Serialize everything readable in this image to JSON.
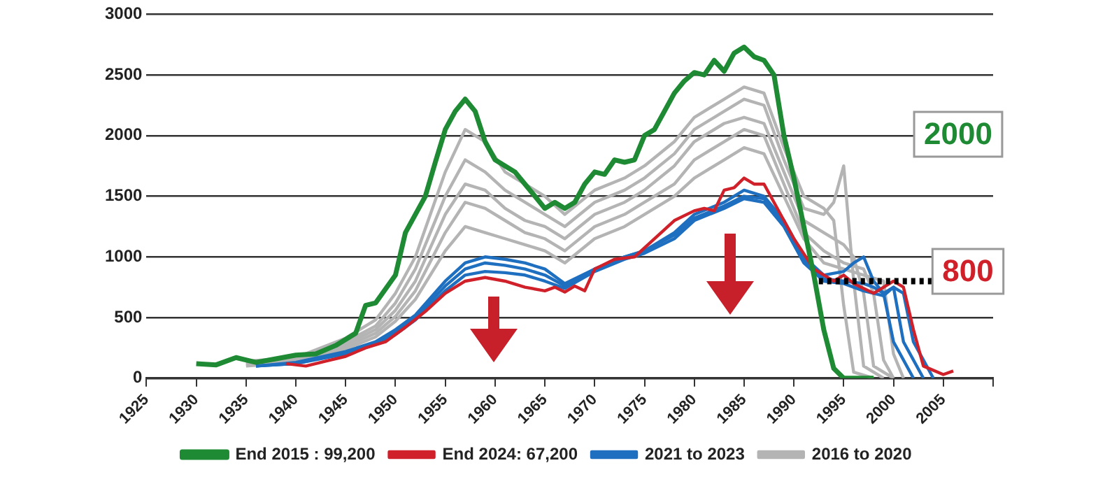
{
  "chart_data": {
    "type": "line",
    "xlim": [
      1925,
      2010
    ],
    "xticks": [
      1925,
      1930,
      1935,
      1940,
      1945,
      1950,
      1955,
      1960,
      1965,
      1970,
      1975,
      1980,
      1985,
      1990,
      1995,
      2000,
      2005,
      {
        "value": 2010,
        "label": null
      }
    ],
    "ylim": [
      0,
      3000
    ],
    "yticks": [
      0,
      500,
      1000,
      1500,
      2000,
      2500,
      3000
    ],
    "grid": "y",
    "legend": "bottom",
    "marker": "none",
    "line_style": "solid",
    "annotations": [
      "2000",
      "800"
    ],
    "series": [
      {
        "name": "End 2015 : 99,200",
        "color": "#1e8b34",
        "x": [
          1930,
          1932,
          1934,
          1936,
          1938,
          1940,
          1942,
          1944,
          1946,
          1947,
          1948,
          1950,
          1951,
          1952,
          1953,
          1954,
          1955,
          1956,
          1957,
          1958,
          1959,
          1960,
          1961,
          1962,
          1963,
          1964,
          1965,
          1966,
          1967,
          1968,
          1969,
          1970,
          1971,
          1972,
          1973,
          1974,
          1975,
          1976,
          1977,
          1978,
          1979,
          1980,
          1981,
          1982,
          1983,
          1984,
          1985,
          1986,
          1987,
          1988,
          1989,
          1990,
          1991,
          1992,
          1993,
          1994,
          1995,
          1998
        ],
        "values": [
          120,
          110,
          170,
          130,
          160,
          190,
          200,
          270,
          370,
          600,
          620,
          850,
          1200,
          1350,
          1500,
          1780,
          2050,
          2200,
          2300,
          2200,
          1950,
          1800,
          1750,
          1700,
          1600,
          1500,
          1400,
          1450,
          1400,
          1450,
          1600,
          1700,
          1680,
          1800,
          1780,
          1800,
          2000,
          2050,
          2200,
          2350,
          2450,
          2520,
          2500,
          2620,
          2530,
          2680,
          2730,
          2650,
          2620,
          2500,
          2000,
          1650,
          1250,
          850,
          400,
          80,
          0,
          0
        ]
      },
      {
        "name": "2016 to 2020",
        "color": "#b4b4b4",
        "x": [
          1935,
          1940,
          1945,
          1948,
          1950,
          1952,
          1955,
          1957,
          1959,
          1961,
          1963,
          1965,
          1967,
          1970,
          1973,
          1975,
          1978,
          1980,
          1983,
          1985,
          1987,
          1989,
          1991,
          1993,
          1994,
          1995,
          1996,
          1998
        ],
        "values": [
          140,
          170,
          330,
          480,
          700,
          1000,
          1700,
          2050,
          1950,
          1700,
          1600,
          1500,
          1350,
          1550,
          1650,
          1750,
          1950,
          2150,
          2300,
          2400,
          2350,
          1900,
          1500,
          1400,
          1300,
          600,
          50,
          0
        ]
      },
      {
        "color": "#b4b4b4",
        "x": [
          1935,
          1940,
          1945,
          1948,
          1950,
          1952,
          1955,
          1957,
          1959,
          1961,
          1963,
          1965,
          1967,
          1970,
          1973,
          1975,
          1978,
          1980,
          1983,
          1985,
          1987,
          1989,
          1991,
          1993,
          1994,
          1995,
          1996,
          1997,
          1999
        ],
        "values": [
          130,
          160,
          300,
          430,
          620,
          900,
          1500,
          1800,
          1700,
          1550,
          1450,
          1350,
          1250,
          1450,
          1550,
          1650,
          1850,
          2050,
          2200,
          2300,
          2250,
          1800,
          1400,
          1350,
          1450,
          1750,
          800,
          100,
          0
        ]
      },
      {
        "color": "#b4b4b4",
        "x": [
          1935,
          1940,
          1945,
          1948,
          1950,
          1952,
          1955,
          1957,
          1959,
          1961,
          1963,
          1965,
          1967,
          1970,
          1973,
          1975,
          1978,
          1980,
          1983,
          1985,
          1987,
          1989,
          1991,
          1993,
          1995,
          1996,
          1997,
          1998,
          2000
        ],
        "values": [
          120,
          150,
          280,
          400,
          560,
          800,
          1350,
          1600,
          1550,
          1400,
          1300,
          1250,
          1150,
          1350,
          1450,
          1550,
          1750,
          1950,
          2100,
          2150,
          2100,
          1700,
          1300,
          1200,
          1100,
          1000,
          700,
          100,
          0
        ]
      },
      {
        "color": "#b4b4b4",
        "x": [
          1935,
          1940,
          1945,
          1948,
          1950,
          1952,
          1955,
          1957,
          1959,
          1961,
          1963,
          1965,
          1967,
          1970,
          1973,
          1975,
          1978,
          1980,
          1983,
          1985,
          1987,
          1989,
          1991,
          1993,
          1995,
          1997,
          1998,
          1999,
          2000
        ],
        "values": [
          110,
          140,
          260,
          370,
          510,
          720,
          1200,
          1450,
          1400,
          1300,
          1200,
          1150,
          1050,
          1250,
          1350,
          1450,
          1600,
          1800,
          1950,
          2050,
          2000,
          1600,
          1200,
          1050,
          950,
          900,
          700,
          150,
          0
        ]
      },
      {
        "color": "#b4b4b4",
        "x": [
          1935,
          1940,
          1945,
          1948,
          1950,
          1952,
          1955,
          1957,
          1959,
          1961,
          1963,
          1965,
          1967,
          1970,
          1973,
          1975,
          1978,
          1980,
          1983,
          1985,
          1987,
          1989,
          1991,
          1993,
          1995,
          1997,
          1999,
          2000,
          2001
        ],
        "values": [
          100,
          130,
          240,
          340,
          470,
          650,
          1050,
          1250,
          1200,
          1150,
          1100,
          1050,
          950,
          1150,
          1250,
          1350,
          1500,
          1650,
          1800,
          1900,
          1850,
          1500,
          1150,
          950,
          900,
          850,
          800,
          200,
          0
        ]
      },
      {
        "name": "2021 to 2023",
        "color": "#1f6fc0",
        "x": [
          1936,
          1940,
          1945,
          1948,
          1950,
          1952,
          1955,
          1957,
          1959,
          1961,
          1963,
          1965,
          1967,
          1970,
          1973,
          1975,
          1978,
          1980,
          1983,
          1985,
          1987,
          1989,
          1991,
          1993,
          1995,
          1996,
          1997,
          1998,
          1999,
          2000,
          2002
        ],
        "values": [
          100,
          130,
          220,
          300,
          400,
          520,
          800,
          950,
          1000,
          980,
          950,
          900,
          780,
          900,
          1000,
          1050,
          1200,
          1350,
          1450,
          1550,
          1500,
          1300,
          1000,
          850,
          880,
          950,
          1000,
          800,
          700,
          300,
          0
        ]
      },
      {
        "color": "#1f6fc0",
        "x": [
          1936,
          1940,
          1945,
          1948,
          1950,
          1952,
          1955,
          1957,
          1959,
          1961,
          1963,
          1965,
          1967,
          1970,
          1973,
          1975,
          1978,
          1980,
          1983,
          1985,
          1987,
          1989,
          1991,
          1993,
          1995,
          1997,
          1998,
          1999,
          2000,
          2001,
          2003
        ],
        "values": [
          100,
          120,
          210,
          290,
          380,
          500,
          760,
          900,
          950,
          930,
          900,
          850,
          760,
          900,
          1000,
          1050,
          1180,
          1320,
          1420,
          1500,
          1480,
          1280,
          980,
          820,
          800,
          780,
          750,
          700,
          750,
          300,
          0
        ]
      },
      {
        "color": "#1f6fc0",
        "x": [
          1936,
          1940,
          1945,
          1948,
          1950,
          1952,
          1955,
          1957,
          1959,
          1961,
          1963,
          1965,
          1967,
          1970,
          1973,
          1975,
          1978,
          1980,
          1983,
          1985,
          1987,
          1989,
          1991,
          1993,
          1995,
          1997,
          1999,
          2000,
          2001,
          2002,
          2004
        ],
        "values": [
          100,
          120,
          200,
          280,
          360,
          480,
          720,
          850,
          880,
          870,
          850,
          800,
          740,
          880,
          980,
          1030,
          1150,
          1300,
          1400,
          1480,
          1450,
          1250,
          950,
          800,
          780,
          720,
          680,
          750,
          700,
          300,
          0
        ]
      },
      {
        "name": "End 2024: 67,200",
        "color": "#d0202a",
        "x": [
          1939,
          1941,
          1943,
          1945,
          1947,
          1949,
          1951,
          1953,
          1955,
          1957,
          1959,
          1961,
          1963,
          1965,
          1966,
          1967,
          1968,
          1969,
          1970,
          1972,
          1974,
          1976,
          1978,
          1980,
          1981,
          1982,
          1983,
          1984,
          1985,
          1986,
          1987,
          1988,
          1990,
          1992,
          1994,
          1995,
          1996,
          1998,
          2000,
          2001,
          2002,
          2003,
          2005,
          2006
        ],
        "values": [
          120,
          100,
          140,
          180,
          250,
          300,
          420,
          550,
          700,
          800,
          830,
          800,
          750,
          720,
          750,
          710,
          760,
          720,
          900,
          980,
          1000,
          1150,
          1300,
          1380,
          1400,
          1380,
          1550,
          1570,
          1650,
          1600,
          1600,
          1450,
          1150,
          900,
          800,
          850,
          780,
          700,
          800,
          750,
          400,
          100,
          30,
          60
        ]
      },
      {
        "color": "#000000",
        "line_style": "dotted",
        "x": [
          1992.5,
          2004
        ],
        "values": [
          800,
          800
        ]
      }
    ]
  }
}
